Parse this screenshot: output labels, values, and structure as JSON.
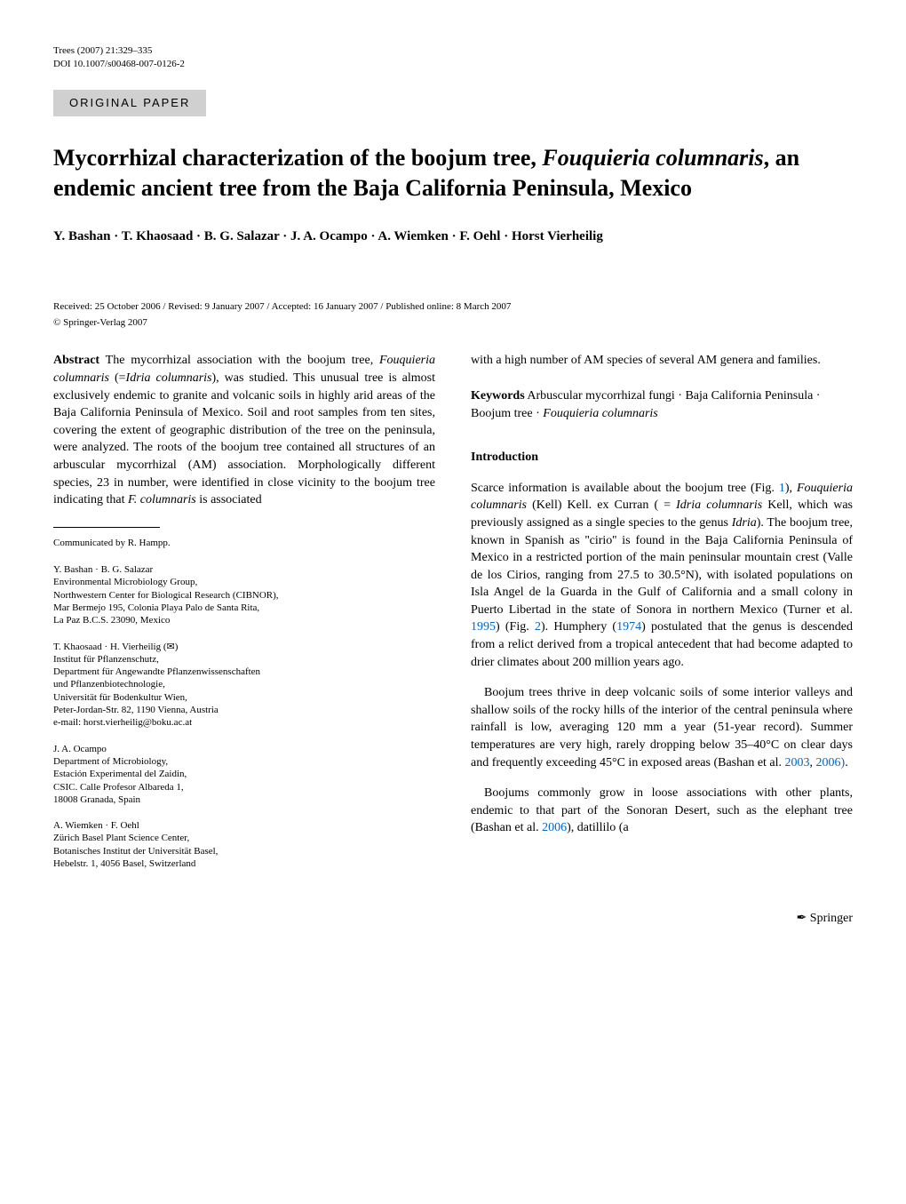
{
  "header": {
    "journal": "Trees (2007) 21:329–335",
    "doi": "DOI 10.1007/s00468-007-0126-2"
  },
  "section_label": "ORIGINAL PAPER",
  "title": "Mycorrhizal characterization of the boojum tree, Fouquieria columnaris, an endemic ancient tree from the Baja California Peninsula, Mexico",
  "authors": "Y. Bashan · T. Khaosaad · B. G. Salazar · J. A. Ocampo · A. Wiemken · F. Oehl · Horst Vierheilig",
  "dates": "Received: 25 October 2006 / Revised: 9 January 2007 / Accepted: 16 January 2007 / Published online: 8 March 2007",
  "copyright": "© Springer-Verlag 2007",
  "abstract": {
    "label": "Abstract",
    "text": "The mycorrhizal association with the boojum tree, Fouquieria columnaris (=Idria columnaris), was studied. This unusual tree is almost exclusively endemic to granite and volcanic soils in highly arid areas of the Baja California Peninsula of Mexico. Soil and root samples from ten sites, covering the extent of geographic distribution of the tree on the peninsula, were analyzed. The roots of the boojum tree contained all structures of an arbuscular mycorrhizal (AM) association. Morphologically different species, 23 in number, were identified in close vicinity to the boojum tree indicating that F. columnaris is associated",
    "continuation": "with a high number of AM species of several AM genera and families."
  },
  "keywords": {
    "label": "Keywords",
    "text": "Arbuscular mycorrhizal fungi · Baja California Peninsula · Boojum tree · Fouquieria columnaris"
  },
  "introduction": {
    "heading": "Introduction",
    "para1": "Scarce information is available about the boojum tree (Fig. 1), Fouquieria columnaris (Kell) Kell. ex Curran ( = Idria columnaris Kell, which was previously assigned as a single species to the genus Idria). The boojum tree, known in Spanish as ''cirio'' is found in the Baja California Peninsula of Mexico in a restricted portion of the main peninsular mountain crest (Valle de los Cirios, ranging from 27.5 to 30.5°N), with isolated populations on Isla Angel de la Guarda in the Gulf of California and a small colony in Puerto Libertad in the state of Sonora in northern Mexico (Turner et al. 1995) (Fig. 2). Humphery (1974) postulated that the genus is descended from a relict derived from a tropical antecedent that had become adapted to drier climates about 200 million years ago.",
    "para2": "Boojum trees thrive in deep volcanic soils of some interior valleys and shallow soils of the rocky hills of the interior of the central peninsula where rainfall is low, averaging 120 mm a year (51-year record). Summer temperatures are very high, rarely dropping below 35–40°C on clear days and frequently exceeding 45°C in exposed areas (Bashan et al. 2003, 2006).",
    "para3": "Boojums commonly grow in loose associations with other plants, endemic to that part of the Sonoran Desert, such as the elephant tree (Bashan et al. 2006), datillilo (a"
  },
  "communicated": "Communicated by R. Hampp.",
  "affiliations": [
    {
      "authors": "Y. Bashan · B. G. Salazar",
      "lines": [
        "Environmental Microbiology Group,",
        "Northwestern Center for Biological Research (CIBNOR),",
        "Mar Bermejo 195, Colonia Playa Palo de Santa Rita,",
        "La Paz B.C.S. 23090, Mexico"
      ]
    },
    {
      "authors": "T. Khaosaad · H. Vierheilig (✉)",
      "lines": [
        "Institut für Pflanzenschutz,",
        "Department für Angewandte Pflanzenwissenschaften",
        "und Pflanzenbiotechnologie,",
        "Universität für Bodenkultur Wien,",
        "Peter-Jordan-Str. 82, 1190 Vienna, Austria",
        "e-mail: horst.vierheilig@boku.ac.at"
      ]
    },
    {
      "authors": "J. A. Ocampo",
      "lines": [
        "Department of Microbiology,",
        "Estación Experimental del Zaidin,",
        "CSIC. Calle Profesor Albareda 1,",
        "18008 Granada, Spain"
      ]
    },
    {
      "authors": "A. Wiemken · F. Oehl",
      "lines": [
        "Zürich Basel Plant Science Center,",
        "Botanisches Institut der Universität Basel,",
        "Hebelstr. 1, 4056 Basel, Switzerland"
      ]
    }
  ],
  "footer_logo": "✒ Springer"
}
